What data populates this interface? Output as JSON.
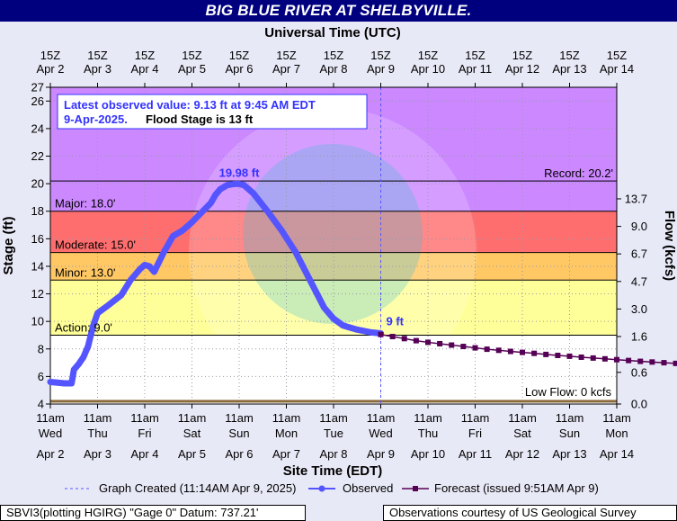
{
  "chart_data": {
    "type": "line",
    "title": "BIG BLUE RIVER AT SHELBYVILLE.",
    "top_axis_title": "Universal Time (UTC)",
    "xlabel": "Site Time (EDT)",
    "ylabel": "Stage (ft)",
    "y2label": "Flow (kcfs)",
    "ylim": [
      4,
      27
    ],
    "yticks": [
      4,
      6,
      8,
      10,
      12,
      14,
      16,
      18,
      20,
      22,
      24,
      26,
      27
    ],
    "y2ticks": [
      {
        "stage": 4,
        "label": "0.0"
      },
      {
        "stage": 6.3,
        "label": "0.6"
      },
      {
        "stage": 8.9,
        "label": "1.6"
      },
      {
        "stage": 10.9,
        "label": "3.0"
      },
      {
        "stage": 12.9,
        "label": "4.7"
      },
      {
        "stage": 14.9,
        "label": "6.7"
      },
      {
        "stage": 16.9,
        "label": "9.0"
      },
      {
        "stage": 18.9,
        "label": "13.7"
      }
    ],
    "top_ticks": [
      {
        "time": "15Z",
        "date": "Apr 2"
      },
      {
        "time": "15Z",
        "date": "Apr 3"
      },
      {
        "time": "15Z",
        "date": "Apr 4"
      },
      {
        "time": "15Z",
        "date": "Apr 5"
      },
      {
        "time": "15Z",
        "date": "Apr 6"
      },
      {
        "time": "15Z",
        "date": "Apr 7"
      },
      {
        "time": "15Z",
        "date": "Apr 8"
      },
      {
        "time": "15Z",
        "date": "Apr 9"
      },
      {
        "time": "15Z",
        "date": "Apr 10"
      },
      {
        "time": "15Z",
        "date": "Apr 11"
      },
      {
        "time": "15Z",
        "date": "Apr 12"
      },
      {
        "time": "15Z",
        "date": "Apr 13"
      },
      {
        "time": "15Z",
        "date": "Apr 14"
      }
    ],
    "bottom_ticks": [
      {
        "time": "11am",
        "day": "Wed",
        "date": "Apr 2"
      },
      {
        "time": "11am",
        "day": "Thu",
        "date": "Apr 3"
      },
      {
        "time": "11am",
        "day": "Fri",
        "date": "Apr 4"
      },
      {
        "time": "11am",
        "day": "Sat",
        "date": "Apr 5"
      },
      {
        "time": "11am",
        "day": "Sun",
        "date": "Apr 6"
      },
      {
        "time": "11am",
        "day": "Mon",
        "date": "Apr 7"
      },
      {
        "time": "11am",
        "day": "Tue",
        "date": "Apr 8"
      },
      {
        "time": "11am",
        "day": "Wed",
        "date": "Apr 9"
      },
      {
        "time": "11am",
        "day": "Thu",
        "date": "Apr 10"
      },
      {
        "time": "11am",
        "day": "Fri",
        "date": "Apr 11"
      },
      {
        "time": "11am",
        "day": "Sat",
        "date": "Apr 12"
      },
      {
        "time": "11am",
        "day": "Sun",
        "date": "Apr 13"
      },
      {
        "time": "11am",
        "day": "Mon",
        "date": "Apr 14"
      }
    ],
    "flood_categories": [
      {
        "name": "Action",
        "label": "Action: 9.0'",
        "from": 9,
        "to": 13,
        "color": "#ffff99"
      },
      {
        "name": "Minor",
        "label": "Minor: 13.0'",
        "from": 13,
        "to": 15,
        "color": "#ffc864"
      },
      {
        "name": "Moderate",
        "label": "Moderate: 15.0'",
        "from": 15,
        "to": 18,
        "color": "#ff6e6e"
      },
      {
        "name": "Major",
        "label": "Major: 18.0'",
        "from": 18,
        "to": 27,
        "color": "#cc88ff"
      }
    ],
    "record": {
      "value": 20.2,
      "label": "Record: 20.2'"
    },
    "low_flow": {
      "value": 4.2,
      "label": "Low Flow: 0 kcfs"
    },
    "annotation_box": {
      "line1": "Latest observed value: 9.13 ft at 9:45 AM EDT",
      "line2a": "9-Apr-2025.",
      "line2b": "Flood Stage is 13 ft"
    },
    "peak_label": {
      "text": "19.98 ft",
      "x": 4.0,
      "y": 19.98
    },
    "latest_label": {
      "text": "9 ft",
      "x": 7.0,
      "y": 9.13
    },
    "graph_created_x": 7.0,
    "series": [
      {
        "name": "Observed",
        "color": "#5555ff",
        "x": [
          0,
          0.3,
          0.45,
          0.5,
          0.6,
          0.7,
          0.8,
          0.9,
          1.0,
          1.2,
          1.5,
          1.7,
          1.9,
          2.0,
          2.1,
          2.2,
          2.4,
          2.6,
          2.8,
          3.0,
          3.2,
          3.4,
          3.5,
          3.6,
          3.75,
          3.9,
          4.0,
          4.1,
          4.3,
          4.6,
          4.9,
          5.2,
          5.5,
          5.8,
          6.0,
          6.2,
          6.5,
          6.8,
          7.0
        ],
        "y": [
          5.6,
          5.5,
          5.5,
          6.5,
          6.9,
          7.4,
          8.2,
          9.6,
          10.6,
          11.1,
          11.9,
          13.0,
          13.8,
          14.1,
          14.0,
          13.6,
          15.0,
          16.2,
          16.6,
          17.2,
          17.9,
          18.6,
          19.2,
          19.6,
          19.9,
          19.98,
          19.98,
          19.9,
          19.3,
          18.0,
          16.6,
          15.0,
          13.0,
          11.0,
          10.2,
          9.7,
          9.4,
          9.2,
          9.13
        ]
      },
      {
        "name": "Forecast (issued 9:51AM Apr 9)",
        "color": "#550055",
        "x": [
          7.0,
          7.25,
          7.5,
          7.75,
          8.0,
          8.25,
          8.5,
          8.75,
          9.0,
          9.25,
          9.5,
          9.75,
          10.0,
          10.25,
          10.5,
          10.75,
          11.0,
          11.25,
          11.5,
          11.75,
          12.0,
          12.25,
          12.5,
          12.75,
          13.0,
          13.25,
          13.5,
          13.75,
          14.0
        ],
        "y": [
          9.05,
          8.9,
          8.75,
          8.6,
          8.48,
          8.38,
          8.28,
          8.18,
          8.08,
          7.98,
          7.9,
          7.82,
          7.75,
          7.68,
          7.6,
          7.53,
          7.47,
          7.4,
          7.34,
          7.28,
          7.22,
          7.16,
          7.1,
          7.05,
          7.0,
          6.95,
          6.9,
          6.85,
          6.8
        ]
      }
    ],
    "legend": {
      "created": "Graph Created (11:14AM Apr 9, 2025)",
      "observed": "Observed",
      "forecast": "Forecast (issued 9:51AM Apr 9)"
    },
    "colors": {
      "title_bar": "#00007f",
      "background": "#e8e9f6",
      "observed": "#5555ff",
      "forecast": "#550055",
      "label_blue": "#3333ff"
    }
  },
  "footer": {
    "left": "SBVI3(plotting HGIRG) \"Gage 0\" Datum: 737.21'",
    "right": "Observations courtesy of US Geological Survey"
  }
}
